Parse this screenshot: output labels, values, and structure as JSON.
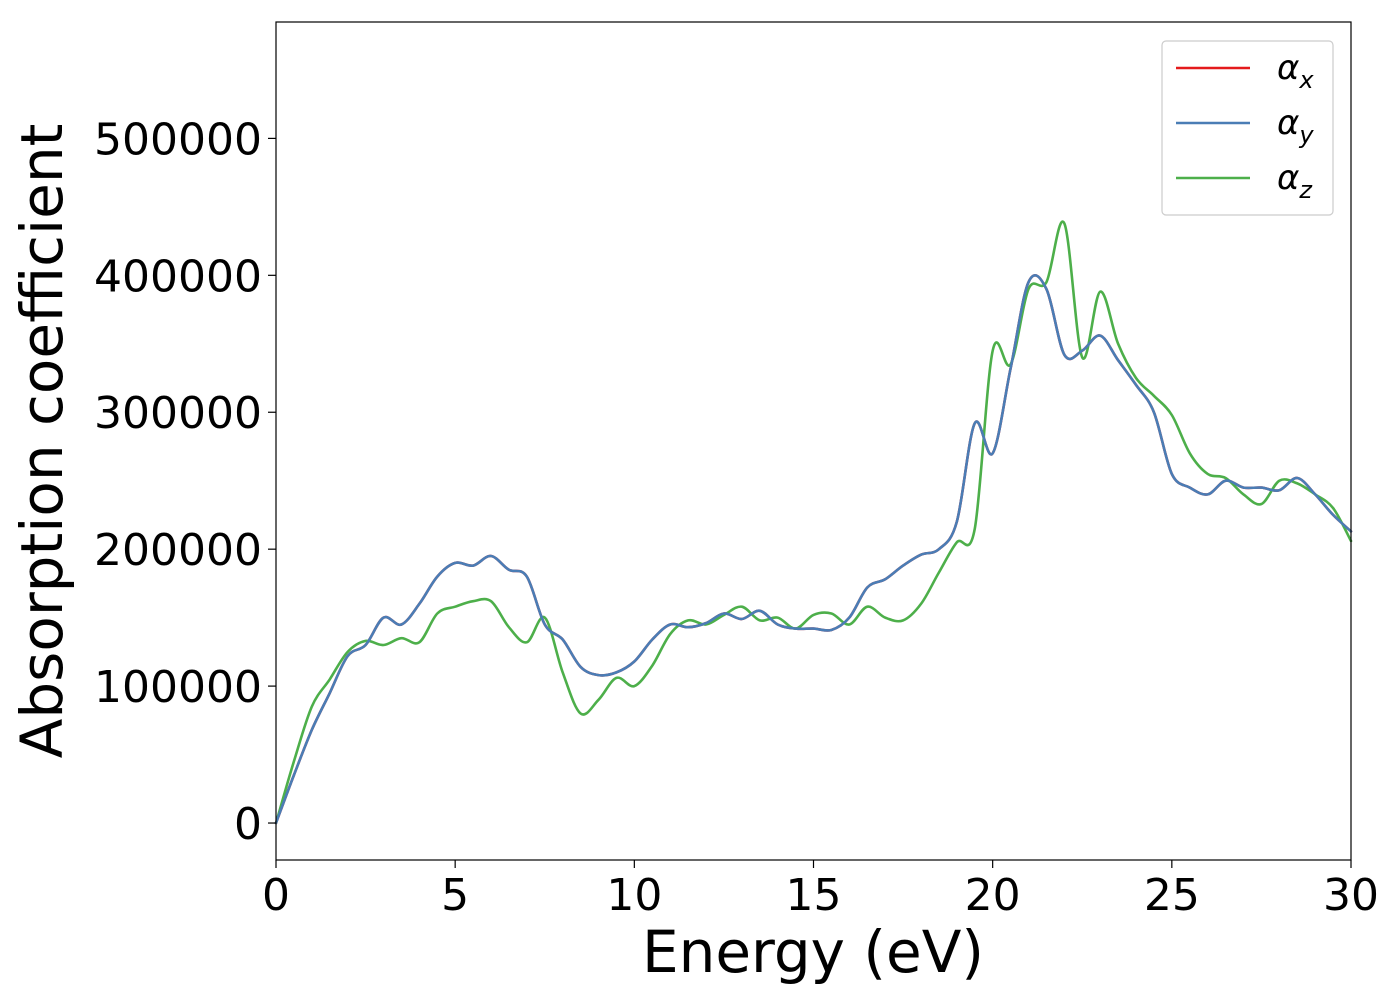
{
  "chart_data": {
    "type": "line",
    "title": "",
    "xlabel": "Energy (eV)",
    "ylabel": "Absorption coefficient",
    "xlim": [
      0,
      30
    ],
    "ylim": [
      -27000,
      585000
    ],
    "xticks": [
      0,
      5,
      10,
      15,
      20,
      25,
      30
    ],
    "yticks": [
      0,
      100000,
      200000,
      300000,
      400000,
      500000
    ],
    "grid": false,
    "legend_position": "top-right",
    "series": [
      {
        "name": "α",
        "subscript": "x",
        "color": "#e41a1c",
        "x": [
          0,
          0.5,
          1,
          1.5,
          2,
          2.5,
          3,
          3.5,
          4,
          4.5,
          5,
          5.5,
          6,
          6.5,
          7,
          7.5,
          8,
          8.5,
          9,
          9.5,
          10,
          10.5,
          11,
          11.5,
          12,
          12.5,
          13,
          13.5,
          14,
          14.5,
          15,
          15.5,
          16,
          16.5,
          17,
          17.5,
          18,
          18.5,
          19,
          19.5,
          20,
          20.5,
          21,
          21.5,
          22,
          22.5,
          23,
          23.5,
          24,
          24.5,
          25,
          25.5,
          26,
          26.5,
          27,
          27.5,
          28,
          28.5,
          29,
          29.5,
          30
        ],
        "y": [
          0,
          35000,
          68000,
          95000,
          122000,
          130000,
          150000,
          145000,
          160000,
          180000,
          190000,
          188000,
          195000,
          185000,
          180000,
          145000,
          134000,
          114000,
          108000,
          110000,
          118000,
          134000,
          145000,
          143000,
          146000,
          153000,
          149000,
          155000,
          145000,
          142000,
          142000,
          141000,
          150000,
          172000,
          178000,
          188000,
          196000,
          200000,
          220000,
          292000,
          270000,
          332000,
          395000,
          390000,
          342000,
          345000,
          356000,
          338000,
          320000,
          300000,
          255000,
          245000,
          240000,
          250000,
          245000,
          245000,
          243000,
          252000,
          240000,
          225000,
          213000
        ]
      },
      {
        "name": "α",
        "subscript": "y",
        "color": "#4a7db5",
        "x": [
          0,
          0.5,
          1,
          1.5,
          2,
          2.5,
          3,
          3.5,
          4,
          4.5,
          5,
          5.5,
          6,
          6.5,
          7,
          7.5,
          8,
          8.5,
          9,
          9.5,
          10,
          10.5,
          11,
          11.5,
          12,
          12.5,
          13,
          13.5,
          14,
          14.5,
          15,
          15.5,
          16,
          16.5,
          17,
          17.5,
          18,
          18.5,
          19,
          19.5,
          20,
          20.5,
          21,
          21.5,
          22,
          22.5,
          23,
          23.5,
          24,
          24.5,
          25,
          25.5,
          26,
          26.5,
          27,
          27.5,
          28,
          28.5,
          29,
          29.5,
          30
        ],
        "y": [
          0,
          35000,
          68000,
          95000,
          122000,
          130000,
          150000,
          145000,
          160000,
          180000,
          190000,
          188000,
          195000,
          185000,
          180000,
          145000,
          134000,
          114000,
          108000,
          110000,
          118000,
          134000,
          145000,
          143000,
          146000,
          153000,
          149000,
          155000,
          145000,
          142000,
          142000,
          141000,
          150000,
          172000,
          178000,
          188000,
          196000,
          200000,
          220000,
          292000,
          270000,
          332000,
          395000,
          390000,
          342000,
          345000,
          356000,
          338000,
          320000,
          300000,
          255000,
          245000,
          240000,
          250000,
          245000,
          245000,
          243000,
          252000,
          240000,
          225000,
          213000
        ]
      },
      {
        "name": "α",
        "subscript": "z",
        "color": "#4daf4a",
        "x": [
          0,
          0.5,
          1,
          1.5,
          2,
          2.5,
          3,
          3.5,
          4,
          4.5,
          5,
          5.5,
          6,
          6.5,
          7,
          7.5,
          8,
          8.5,
          9,
          9.5,
          10,
          10.5,
          11,
          11.5,
          12,
          12.5,
          13,
          13.5,
          14,
          14.5,
          15,
          15.5,
          16,
          16.5,
          17,
          17.5,
          18,
          18.5,
          19,
          19.5,
          20,
          20.5,
          21,
          21.5,
          22,
          22.5,
          23,
          23.5,
          24,
          24.5,
          25,
          25.5,
          26,
          26.5,
          27,
          27.5,
          28,
          28.5,
          29,
          29.5,
          30
        ],
        "y": [
          0,
          45000,
          85000,
          105000,
          125000,
          133000,
          130000,
          135000,
          132000,
          153000,
          158000,
          162000,
          162000,
          143000,
          132000,
          150000,
          110000,
          80000,
          90000,
          106000,
          100000,
          115000,
          138000,
          148000,
          145000,
          152000,
          158000,
          148000,
          150000,
          142000,
          152000,
          153000,
          145000,
          158000,
          150000,
          148000,
          160000,
          183000,
          205000,
          215000,
          345000,
          335000,
          390000,
          395000,
          438000,
          340000,
          388000,
          350000,
          325000,
          312000,
          298000,
          270000,
          255000,
          252000,
          240000,
          233000,
          250000,
          248000,
          240000,
          230000,
          206000
        ]
      }
    ]
  }
}
